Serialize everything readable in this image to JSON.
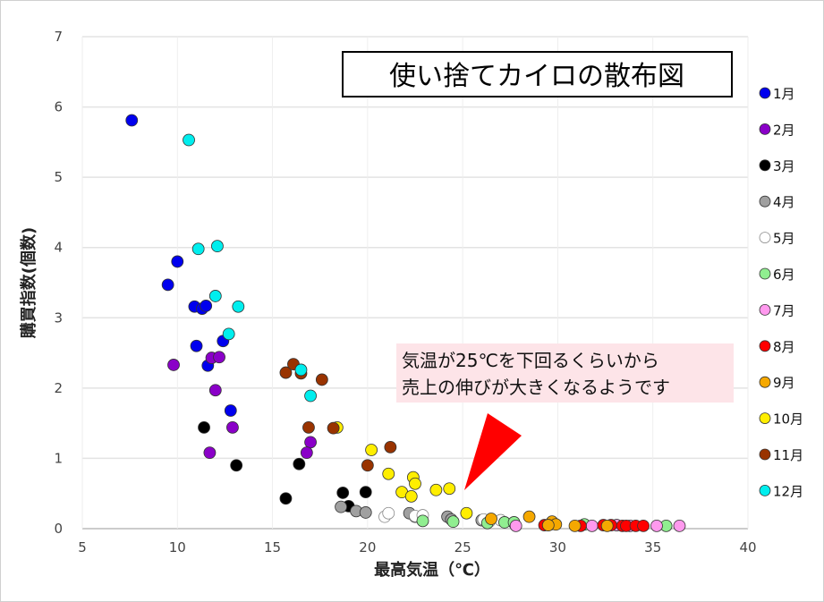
{
  "chart_data": {
    "type": "scatter",
    "title": "使い捨てカイロの散布図",
    "xlabel": "最高気温（℃）",
    "ylabel": "購買指数(個数)",
    "xlim": [
      5,
      40
    ],
    "ylim": [
      0,
      7
    ],
    "xticks": [
      5,
      10,
      15,
      20,
      25,
      30,
      35,
      40
    ],
    "yticks": [
      0,
      1,
      2,
      3,
      4,
      5,
      6,
      7
    ],
    "grid": true,
    "legend_position": "right",
    "annotation": {
      "lines": [
        "気温が25℃を下回るくらいから",
        "売上の伸びが大きくなるようです"
      ]
    },
    "series": [
      {
        "name": "1月",
        "color": "#0000ee",
        "points": [
          [
            7.6,
            5.81
          ],
          [
            10.0,
            3.8
          ],
          [
            9.5,
            3.47
          ],
          [
            10.9,
            3.16
          ],
          [
            11.3,
            3.13
          ],
          [
            11.5,
            3.17
          ],
          [
            11.0,
            2.6
          ],
          [
            12.4,
            2.67
          ],
          [
            11.6,
            2.32
          ],
          [
            12.8,
            1.68
          ]
        ]
      },
      {
        "name": "2月",
        "color": "#8a00c8",
        "points": [
          [
            9.8,
            2.33
          ],
          [
            11.8,
            2.43
          ],
          [
            12.2,
            2.44
          ],
          [
            12.0,
            1.97
          ],
          [
            12.9,
            1.44
          ],
          [
            11.7,
            1.08
          ],
          [
            17.0,
            1.23
          ],
          [
            16.8,
            1.08
          ]
        ]
      },
      {
        "name": "3月",
        "color": "#000000",
        "points": [
          [
            11.4,
            1.44
          ],
          [
            13.1,
            0.9
          ],
          [
            15.7,
            0.43
          ],
          [
            16.4,
            0.92
          ],
          [
            18.7,
            0.51
          ],
          [
            19.0,
            0.32
          ],
          [
            19.9,
            0.52
          ]
        ]
      },
      {
        "name": "4月",
        "color": "#a0a0a0",
        "points": [
          [
            18.6,
            0.31
          ],
          [
            19.4,
            0.25
          ],
          [
            19.9,
            0.23
          ],
          [
            22.2,
            0.22
          ],
          [
            22.5,
            0.17
          ],
          [
            24.2,
            0.17
          ],
          [
            24.4,
            0.13
          ],
          [
            26.0,
            0.12
          ],
          [
            27.7,
            0.08
          ]
        ]
      },
      {
        "name": "5月",
        "color": "#ffffff",
        "points": [
          [
            20.9,
            0.17
          ],
          [
            21.1,
            0.22
          ],
          [
            22.5,
            0.18
          ],
          [
            22.9,
            0.19
          ],
          [
            26.1,
            0.13
          ],
          [
            26.4,
            0.1
          ],
          [
            27.0,
            0.12
          ]
        ]
      },
      {
        "name": "6月",
        "color": "#90ee90",
        "points": [
          [
            22.9,
            0.11
          ],
          [
            24.5,
            0.1
          ],
          [
            26.3,
            0.08
          ],
          [
            27.2,
            0.09
          ],
          [
            27.7,
            0.09
          ],
          [
            31.4,
            0.06
          ],
          [
            35.7,
            0.04
          ]
        ]
      },
      {
        "name": "7月",
        "color": "#ff99ee",
        "points": [
          [
            27.8,
            0.04
          ],
          [
            31.8,
            0.04
          ],
          [
            33.1,
            0.05
          ],
          [
            33.8,
            0.04
          ],
          [
            35.2,
            0.04
          ],
          [
            36.4,
            0.04
          ]
        ]
      },
      {
        "name": "8月",
        "color": "#ff0000",
        "points": [
          [
            29.3,
            0.05
          ],
          [
            29.6,
            0.06
          ],
          [
            31.2,
            0.04
          ],
          [
            32.4,
            0.05
          ],
          [
            32.8,
            0.05
          ],
          [
            33.4,
            0.04
          ],
          [
            33.6,
            0.04
          ],
          [
            34.1,
            0.04
          ],
          [
            34.5,
            0.04
          ]
        ]
      },
      {
        "name": "9月",
        "color": "#f5a800",
        "points": [
          [
            26.5,
            0.14
          ],
          [
            28.5,
            0.17
          ],
          [
            29.7,
            0.1
          ],
          [
            29.9,
            0.06
          ],
          [
            29.5,
            0.05
          ],
          [
            30.9,
            0.04
          ],
          [
            32.6,
            0.04
          ]
        ]
      },
      {
        "name": "10月",
        "color": "#ffee00",
        "points": [
          [
            20.2,
            1.12
          ],
          [
            21.1,
            0.78
          ],
          [
            22.4,
            0.73
          ],
          [
            22.5,
            0.64
          ],
          [
            21.8,
            0.52
          ],
          [
            22.3,
            0.46
          ],
          [
            23.6,
            0.55
          ],
          [
            24.3,
            0.57
          ],
          [
            25.2,
            0.22
          ],
          [
            18.4,
            1.44
          ]
        ]
      },
      {
        "name": "11月",
        "color": "#993300",
        "points": [
          [
            15.7,
            2.22
          ],
          [
            16.1,
            2.34
          ],
          [
            16.5,
            2.21
          ],
          [
            17.6,
            2.12
          ],
          [
            16.9,
            1.44
          ],
          [
            18.2,
            1.43
          ],
          [
            20.0,
            0.9
          ],
          [
            21.2,
            1.16
          ]
        ]
      },
      {
        "name": "12月",
        "color": "#00eeee",
        "points": [
          [
            10.6,
            5.53
          ],
          [
            11.1,
            3.98
          ],
          [
            12.1,
            4.02
          ],
          [
            12.0,
            3.31
          ],
          [
            13.2,
            3.16
          ],
          [
            12.7,
            2.77
          ],
          [
            16.5,
            2.26
          ],
          [
            17.0,
            1.89
          ]
        ]
      }
    ]
  }
}
